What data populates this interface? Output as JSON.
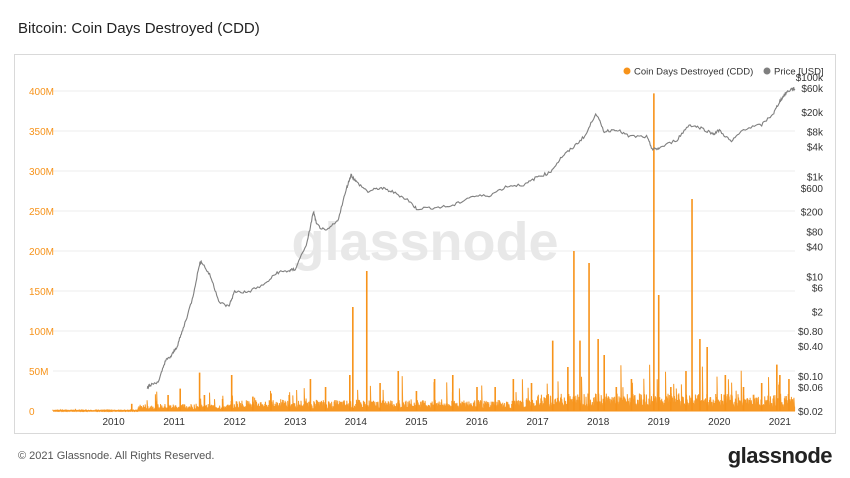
{
  "title": "Bitcoin: Coin Days Destroyed (CDD)",
  "footer": "© 2021 Glassnode. All Rights Reserved.",
  "brand": "glassnode",
  "watermark": "glassnode",
  "colors": {
    "cdd": "#f7931a",
    "price": "#7f7f7f",
    "axis_left": "#f7931a",
    "axis_right": "#333333",
    "grid": "#ececec"
  },
  "chart_data": {
    "type": "line",
    "legend": [
      {
        "name": "Coin Days Destroyed (CDD)",
        "color": "#f7931a"
      },
      {
        "name": "Price [USD]",
        "color": "#7f7f7f"
      }
    ],
    "legend_position": "top-right",
    "x_ticks": [
      "2010",
      "2011",
      "2012",
      "2013",
      "2014",
      "2015",
      "2016",
      "2017",
      "2018",
      "2019",
      "2020",
      "2021"
    ],
    "x_range": [
      2009.0,
      2021.25
    ],
    "y_left": {
      "range": [
        0,
        420000000
      ],
      "ticks": [
        0,
        50000000,
        100000000,
        150000000,
        200000000,
        250000000,
        300000000,
        350000000,
        400000000
      ],
      "tick_labels": [
        "0",
        "50M",
        "100M",
        "150M",
        "200M",
        "250M",
        "300M",
        "350M",
        "400M"
      ]
    },
    "y_right": {
      "scale": "log",
      "range": [
        0.02,
        100000
      ],
      "tick_labels": [
        "$0.02",
        "$0.06",
        "$0.10",
        "$0.40",
        "$0.80",
        "$2",
        "$6",
        "$10",
        "$40",
        "$80",
        "$200",
        "$600",
        "$1k",
        "$4k",
        "$8k",
        "$20k",
        "$60k",
        "$100k"
      ],
      "tick_values": [
        0.02,
        0.06,
        0.1,
        0.4,
        0.8,
        2,
        6,
        10,
        40,
        80,
        200,
        600,
        1000,
        4000,
        8000,
        20000,
        60000,
        100000
      ]
    },
    "series": [
      {
        "name": "Price [USD]",
        "points": [
          [
            2010.55,
            0.06
          ],
          [
            2010.6,
            0.065
          ],
          [
            2010.75,
            0.08
          ],
          [
            2010.85,
            0.2
          ],
          [
            2010.95,
            0.25
          ],
          [
            2011.05,
            0.4
          ],
          [
            2011.15,
            0.9
          ],
          [
            2011.3,
            3.5
          ],
          [
            2011.42,
            18
          ],
          [
            2011.45,
            20
          ],
          [
            2011.6,
            10
          ],
          [
            2011.75,
            3
          ],
          [
            2011.9,
            2.5
          ],
          [
            2012.0,
            5
          ],
          [
            2012.2,
            4.8
          ],
          [
            2012.5,
            7
          ],
          [
            2012.7,
            12
          ],
          [
            2012.9,
            13
          ],
          [
            2013.0,
            14
          ],
          [
            2013.2,
            50
          ],
          [
            2013.3,
            200
          ],
          [
            2013.35,
            110
          ],
          [
            2013.5,
            80
          ],
          [
            2013.7,
            130
          ],
          [
            2013.85,
            600
          ],
          [
            2013.92,
            1100
          ],
          [
            2014.0,
            800
          ],
          [
            2014.2,
            500
          ],
          [
            2014.4,
            600
          ],
          [
            2014.6,
            500
          ],
          [
            2014.85,
            350
          ],
          [
            2015.0,
            230
          ],
          [
            2015.3,
            240
          ],
          [
            2015.6,
            260
          ],
          [
            2015.9,
            400
          ],
          [
            2016.2,
            420
          ],
          [
            2016.5,
            650
          ],
          [
            2016.8,
            700
          ],
          [
            2017.0,
            1000
          ],
          [
            2017.2,
            1200
          ],
          [
            2017.4,
            2500
          ],
          [
            2017.6,
            4000
          ],
          [
            2017.8,
            7000
          ],
          [
            2017.96,
            19000
          ],
          [
            2018.1,
            8000
          ],
          [
            2018.3,
            9000
          ],
          [
            2018.5,
            6500
          ],
          [
            2018.8,
            6300
          ],
          [
            2018.9,
            3500
          ],
          [
            2019.0,
            3700
          ],
          [
            2019.3,
            5500
          ],
          [
            2019.5,
            11000
          ],
          [
            2019.7,
            9500
          ],
          [
            2019.9,
            7200
          ],
          [
            2020.0,
            8500
          ],
          [
            2020.2,
            5000
          ],
          [
            2020.4,
            9000
          ],
          [
            2020.7,
            11000
          ],
          [
            2020.9,
            19000
          ],
          [
            2021.0,
            33000
          ],
          [
            2021.1,
            48000
          ],
          [
            2021.2,
            58000
          ],
          [
            2021.25,
            57000
          ]
        ]
      },
      {
        "name": "Coin Days Destroyed (CDD)",
        "spikes": [
          [
            2010.3,
            9000000
          ],
          [
            2010.7,
            12000000
          ],
          [
            2010.9,
            20000000
          ],
          [
            2011.1,
            28000000
          ],
          [
            2011.42,
            48000000
          ],
          [
            2011.5,
            20000000
          ],
          [
            2011.8,
            15000000
          ],
          [
            2011.95,
            45000000
          ],
          [
            2012.3,
            18000000
          ],
          [
            2012.6,
            22000000
          ],
          [
            2012.9,
            20000000
          ],
          [
            2013.25,
            40000000
          ],
          [
            2013.5,
            30000000
          ],
          [
            2013.9,
            45000000
          ],
          [
            2013.95,
            130000000
          ],
          [
            2014.18,
            175000000
          ],
          [
            2014.4,
            35000000
          ],
          [
            2014.7,
            50000000
          ],
          [
            2015.0,
            25000000
          ],
          [
            2015.3,
            40000000
          ],
          [
            2015.6,
            45000000
          ],
          [
            2016.0,
            30000000
          ],
          [
            2016.3,
            30000000
          ],
          [
            2016.6,
            40000000
          ],
          [
            2016.9,
            35000000
          ],
          [
            2017.25,
            88000000
          ],
          [
            2017.5,
            55000000
          ],
          [
            2017.6,
            200000000
          ],
          [
            2017.7,
            88000000
          ],
          [
            2017.85,
            185000000
          ],
          [
            2018.0,
            90000000
          ],
          [
            2018.1,
            70000000
          ],
          [
            2018.3,
            30000000
          ],
          [
            2018.55,
            40000000
          ],
          [
            2018.92,
            397000000
          ],
          [
            2019.0,
            145000000
          ],
          [
            2019.2,
            30000000
          ],
          [
            2019.45,
            50000000
          ],
          [
            2019.55,
            265000000
          ],
          [
            2019.68,
            90000000
          ],
          [
            2019.8,
            80000000
          ],
          [
            2020.1,
            45000000
          ],
          [
            2020.4,
            30000000
          ],
          [
            2020.7,
            35000000
          ],
          [
            2020.95,
            58000000
          ],
          [
            2021.0,
            45000000
          ],
          [
            2021.15,
            40000000
          ]
        ]
      }
    ]
  }
}
